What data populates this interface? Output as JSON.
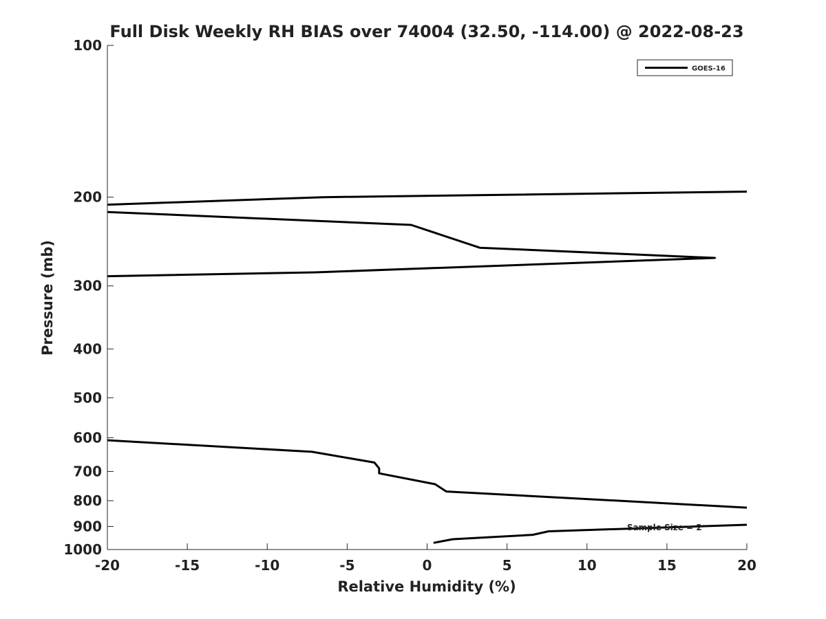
{
  "chart_data": {
    "type": "line",
    "title": "Full Disk Weekly RH BIAS over 74004 (32.50, -114.00) @ 2022-08-23",
    "xlabel": "Relative Humidity (%)",
    "ylabel": "Pressure (mb)",
    "xlim": [
      -20,
      20
    ],
    "ylim": [
      1000,
      100
    ],
    "yscale": "log",
    "y_direction": "reversed",
    "grid": false,
    "legend_position": "top-right",
    "x_ticks": [
      -20,
      -15,
      -10,
      -5,
      0,
      5,
      10,
      15,
      20
    ],
    "x_tick_labels": [
      "-20",
      "-15",
      "-10",
      "-5",
      "0",
      "5",
      "10",
      "15",
      "20"
    ],
    "y_ticks": [
      100,
      200,
      300,
      400,
      500,
      600,
      700,
      800,
      900,
      1000
    ],
    "y_tick_labels": [
      "100",
      "200",
      "300",
      "400",
      "500",
      "600",
      "700",
      "800",
      "900",
      "1000"
    ],
    "series": [
      {
        "name": "GOES-16",
        "color": "#000000",
        "segments": [
          [
            {
              "x": 20.0,
              "y": 195
            },
            {
              "x": -6.5,
              "y": 200
            },
            {
              "x": -20.0,
              "y": 207
            }
          ],
          [
            {
              "x": -20.0,
              "y": 214
            },
            {
              "x": -1.0,
              "y": 227
            },
            {
              "x": 3.3,
              "y": 252
            },
            {
              "x": 18.0,
              "y": 264
            },
            {
              "x": -7.0,
              "y": 282
            },
            {
              "x": -20.0,
              "y": 287
            }
          ],
          [
            {
              "x": -20.0,
              "y": 607
            },
            {
              "x": -7.2,
              "y": 640
            },
            {
              "x": -3.3,
              "y": 672
            },
            {
              "x": -3.0,
              "y": 690
            },
            {
              "x": -3.0,
              "y": 706
            },
            {
              "x": 0.5,
              "y": 742
            },
            {
              "x": 1.2,
              "y": 767
            },
            {
              "x": 20.0,
              "y": 826
            }
          ],
          [
            {
              "x": 20.0,
              "y": 893
            },
            {
              "x": 7.6,
              "y": 920
            },
            {
              "x": 6.6,
              "y": 935
            },
            {
              "x": 1.6,
              "y": 954
            },
            {
              "x": 0.4,
              "y": 970
            }
          ]
        ]
      }
    ],
    "annotations": [
      {
        "text": "Sample Size = 2",
        "x": 12.5,
        "y": 905
      }
    ]
  }
}
